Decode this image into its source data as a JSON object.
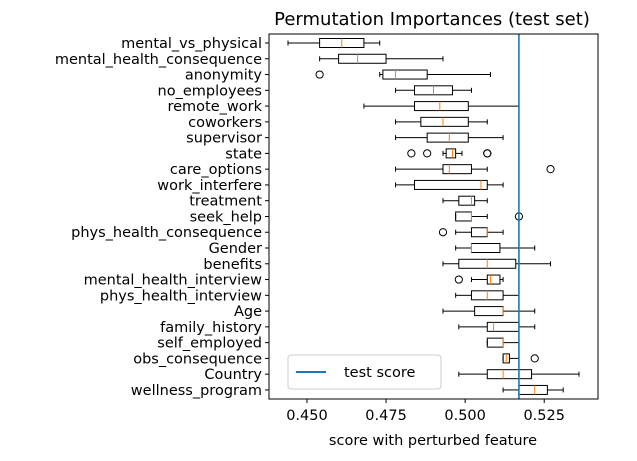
{
  "chart_data": {
    "type": "boxplot",
    "orientation": "horizontal",
    "title": "Permutation Importances (test set)",
    "xlabel": "score with perturbed feature",
    "ylabel": "",
    "xlim": [
      0.438,
      0.542
    ],
    "xticks": [
      0.45,
      0.475,
      0.5,
      0.525
    ],
    "xtick_labels": [
      "0.450",
      "0.475",
      "0.500",
      "0.525"
    ],
    "reference_line": {
      "label": "test score",
      "x": 0.517,
      "color": "#1f77b4"
    },
    "legend": {
      "placement": "lower-left",
      "entries": [
        "test score"
      ]
    },
    "box_color": "#000000",
    "median_color": "#ff7f0e",
    "features": [
      {
        "name": "mental_vs_physical",
        "wlo": 0.444,
        "q1": 0.454,
        "med": 0.461,
        "q3": 0.468,
        "whi": 0.473,
        "fliers": []
      },
      {
        "name": "mental_health_consequence",
        "wlo": 0.454,
        "q1": 0.46,
        "med": 0.466,
        "q3": 0.475,
        "whi": 0.493,
        "fliers": []
      },
      {
        "name": "anonymity",
        "wlo": 0.473,
        "q1": 0.474,
        "med": 0.478,
        "q3": 0.488,
        "whi": 0.508,
        "fliers": [
          0.454
        ]
      },
      {
        "name": "no_employees",
        "wlo": 0.478,
        "q1": 0.484,
        "med": 0.49,
        "q3": 0.496,
        "whi": 0.502,
        "fliers": []
      },
      {
        "name": "remote_work",
        "wlo": 0.468,
        "q1": 0.484,
        "med": 0.492,
        "q3": 0.501,
        "whi": 0.517,
        "fliers": []
      },
      {
        "name": "coworkers",
        "wlo": 0.478,
        "q1": 0.486,
        "med": 0.493,
        "q3": 0.501,
        "whi": 0.507,
        "fliers": []
      },
      {
        "name": "supervisor",
        "wlo": 0.478,
        "q1": 0.488,
        "med": 0.495,
        "q3": 0.501,
        "whi": 0.512,
        "fliers": []
      },
      {
        "name": "state",
        "wlo": 0.493,
        "q1": 0.494,
        "med": 0.496,
        "q3": 0.497,
        "whi": 0.499,
        "fliers": [
          0.483,
          0.488,
          0.507,
          0.507
        ]
      },
      {
        "name": "care_options",
        "wlo": 0.478,
        "q1": 0.493,
        "med": 0.495,
        "q3": 0.502,
        "whi": 0.507,
        "fliers": [
          0.527
        ]
      },
      {
        "name": "work_interfere",
        "wlo": 0.478,
        "q1": 0.484,
        "med": 0.505,
        "q3": 0.507,
        "whi": 0.512,
        "fliers": []
      },
      {
        "name": "treatment",
        "wlo": 0.493,
        "q1": 0.498,
        "med": 0.502,
        "q3": 0.503,
        "whi": 0.507,
        "fliers": []
      },
      {
        "name": "seek_help",
        "wlo": 0.497,
        "q1": 0.497,
        "med": 0.502,
        "q3": 0.502,
        "whi": 0.507,
        "fliers": [
          0.517
        ]
      },
      {
        "name": "phys_health_consequence",
        "wlo": 0.497,
        "q1": 0.502,
        "med": 0.507,
        "q3": 0.507,
        "whi": 0.512,
        "fliers": [
          0.493
        ]
      },
      {
        "name": "Gender",
        "wlo": 0.497,
        "q1": 0.502,
        "med": 0.502,
        "q3": 0.511,
        "whi": 0.522,
        "fliers": []
      },
      {
        "name": "benefits",
        "wlo": 0.493,
        "q1": 0.498,
        "med": 0.507,
        "q3": 0.516,
        "whi": 0.527,
        "fliers": []
      },
      {
        "name": "mental_health_interview",
        "wlo": 0.502,
        "q1": 0.507,
        "med": 0.508,
        "q3": 0.511,
        "whi": 0.512,
        "fliers": [
          0.498
        ]
      },
      {
        "name": "phys_health_interview",
        "wlo": 0.497,
        "q1": 0.502,
        "med": 0.507,
        "q3": 0.512,
        "whi": 0.517,
        "fliers": []
      },
      {
        "name": "Age",
        "wlo": 0.493,
        "q1": 0.503,
        "med": 0.512,
        "q3": 0.512,
        "whi": 0.522,
        "fliers": []
      },
      {
        "name": "family_history",
        "wlo": 0.498,
        "q1": 0.507,
        "med": 0.509,
        "q3": 0.517,
        "whi": 0.522,
        "fliers": []
      },
      {
        "name": "self_employed",
        "wlo": 0.507,
        "q1": 0.507,
        "med": 0.512,
        "q3": 0.512,
        "whi": 0.517,
        "fliers": []
      },
      {
        "name": "obs_consequence",
        "wlo": 0.512,
        "q1": 0.512,
        "med": 0.513,
        "q3": 0.514,
        "whi": 0.517,
        "fliers": [
          0.522
        ]
      },
      {
        "name": "Country",
        "wlo": 0.498,
        "q1": 0.507,
        "med": 0.512,
        "q3": 0.521,
        "whi": 0.536,
        "fliers": []
      },
      {
        "name": "wellness_program",
        "wlo": 0.512,
        "q1": 0.517,
        "med": 0.522,
        "q3": 0.526,
        "whi": 0.531,
        "fliers": []
      }
    ]
  }
}
